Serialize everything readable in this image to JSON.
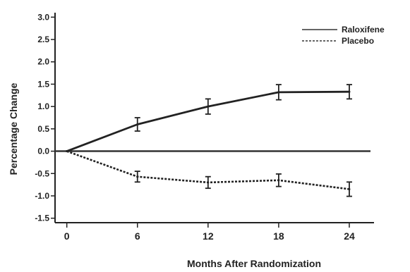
{
  "chart_data": {
    "type": "line",
    "title": "",
    "xlabel": "Months After Randomization",
    "ylabel": "Percentage Change",
    "x": [
      0,
      6,
      12,
      18,
      24
    ],
    "xticks": [
      "0",
      "6",
      "12",
      "18",
      "24"
    ],
    "yticks": [
      "3.0",
      "2.5",
      "2.0",
      "1.5",
      "1.0",
      "0.5",
      "0.0",
      "-0.5",
      "-1.0",
      "-1.5"
    ],
    "ylim": [
      -1.6,
      3.1
    ],
    "xlim": [
      -1,
      25.5
    ],
    "reference_line_y": 0,
    "legend_position": "top-right",
    "series": [
      {
        "name": "Raloxifene",
        "style": "solid",
        "color": "#222222",
        "values": [
          0.0,
          0.6,
          1.0,
          1.32,
          1.33
        ],
        "errors": [
          0,
          0.15,
          0.17,
          0.17,
          0.16
        ]
      },
      {
        "name": "Placebo",
        "style": "dotted",
        "color": "#222222",
        "values": [
          0.0,
          -0.57,
          -0.7,
          -0.65,
          -0.85
        ],
        "errors": [
          0,
          0.12,
          0.13,
          0.14,
          0.16
        ]
      }
    ]
  }
}
